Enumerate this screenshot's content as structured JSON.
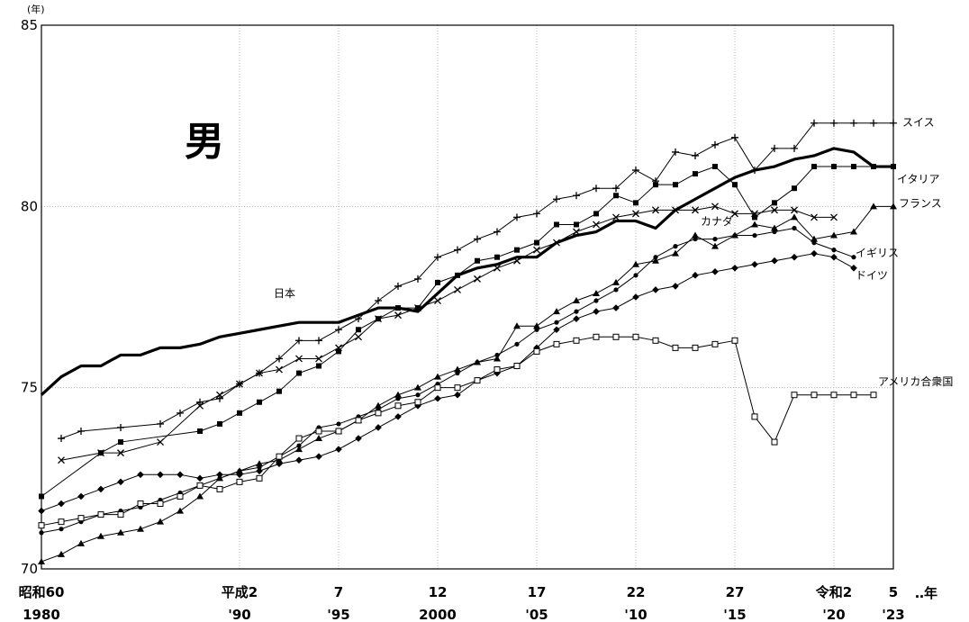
{
  "chart_data": {
    "type": "line",
    "title": "男",
    "y_unit": "(年)",
    "x_suffix": "‥年",
    "ylim": [
      70,
      85
    ],
    "y_ticks": [
      70,
      75,
      80,
      85
    ],
    "xlim": [
      1980,
      2023
    ],
    "x_ticks": [
      {
        "x": 1980,
        "jp": "昭和60",
        "west": "1980"
      },
      {
        "x": 1990,
        "jp": "平成2",
        "west": "'90"
      },
      {
        "x": 1995,
        "jp": "7",
        "west": "'95"
      },
      {
        "x": 2000,
        "jp": "12",
        "west": "2000"
      },
      {
        "x": 2005,
        "jp": "17",
        "west": "'05"
      },
      {
        "x": 2010,
        "jp": "22",
        "west": "'10"
      },
      {
        "x": 2015,
        "jp": "27",
        "west": "'15"
      },
      {
        "x": 2020,
        "jp": "令和2",
        "west": "'20"
      },
      {
        "x": 2023,
        "jp": "5",
        "west": "'23"
      }
    ],
    "grid": true,
    "series": [
      {
        "name": "日本",
        "marker": "none",
        "x": [
          1980,
          1981,
          1982,
          1983,
          1984,
          1985,
          1986,
          1987,
          1988,
          1989,
          1990,
          1991,
          1992,
          1993,
          1994,
          1995,
          1996,
          1997,
          1998,
          1999,
          2000,
          2001,
          2002,
          2003,
          2004,
          2005,
          2006,
          2007,
          2008,
          2009,
          2010,
          2011,
          2012,
          2013,
          2014,
          2015,
          2016,
          2017,
          2018,
          2019,
          2020,
          2021,
          2022,
          2023
        ],
        "y": [
          74.8,
          75.3,
          75.6,
          75.6,
          75.9,
          75.9,
          76.1,
          76.1,
          76.2,
          76.4,
          76.5,
          76.6,
          76.7,
          76.8,
          76.8,
          76.8,
          77.0,
          77.2,
          77.2,
          77.1,
          77.6,
          78.1,
          78.3,
          78.4,
          78.6,
          78.6,
          79.0,
          79.2,
          79.3,
          79.6,
          79.6,
          79.4,
          79.9,
          80.2,
          80.5,
          80.8,
          81.0,
          81.1,
          81.3,
          81.4,
          81.6,
          81.5,
          81.1,
          81.1
        ]
      },
      {
        "name": "スイス",
        "marker": "plus",
        "x": [
          1981,
          1982,
          1984,
          1986,
          1987,
          1988,
          1989,
          1990,
          1991,
          1992,
          1993,
          1994,
          1995,
          1996,
          1997,
          1998,
          1999,
          2000,
          2001,
          2002,
          2003,
          2004,
          2005,
          2006,
          2007,
          2008,
          2009,
          2010,
          2011,
          2012,
          2013,
          2014,
          2015,
          2016,
          2017,
          2018,
          2019,
          2020,
          2021,
          2022,
          2023
        ],
        "y": [
          73.6,
          73.8,
          73.9,
          74.0,
          74.3,
          74.6,
          74.7,
          75.1,
          75.4,
          75.8,
          76.3,
          76.3,
          76.6,
          76.9,
          77.4,
          77.8,
          78.0,
          78.6,
          78.8,
          79.1,
          79.3,
          79.7,
          79.8,
          80.2,
          80.3,
          80.5,
          80.5,
          81.0,
          80.7,
          81.5,
          81.4,
          81.7,
          81.9,
          81.0,
          81.6,
          81.6,
          82.3,
          82.3,
          82.3,
          82.3,
          82.3
        ]
      },
      {
        "name": "イタリア",
        "marker": "square",
        "x": [
          1980,
          1983,
          1984,
          1988,
          1989,
          1990,
          1991,
          1992,
          1993,
          1994,
          1995,
          1996,
          1997,
          1998,
          1999,
          2000,
          2001,
          2002,
          2003,
          2004,
          2005,
          2006,
          2007,
          2008,
          2009,
          2010,
          2011,
          2012,
          2013,
          2014,
          2015,
          2016,
          2017,
          2018,
          2019,
          2020,
          2021,
          2022,
          2023
        ],
        "y": [
          72.0,
          73.2,
          73.5,
          73.8,
          74.0,
          74.3,
          74.6,
          74.9,
          75.4,
          75.6,
          76.0,
          76.6,
          76.9,
          77.2,
          77.2,
          77.9,
          78.1,
          78.5,
          78.6,
          78.8,
          79.0,
          79.5,
          79.5,
          79.8,
          80.3,
          80.1,
          80.6,
          80.6,
          80.9,
          81.1,
          80.6,
          79.7,
          80.1,
          80.5,
          81.1,
          81.1,
          81.1,
          81.1,
          81.1
        ]
      },
      {
        "name": "フランス",
        "marker": "triangle",
        "x": [
          1980,
          1981,
          1982,
          1983,
          1984,
          1985,
          1986,
          1987,
          1988,
          1989,
          1990,
          1991,
          1992,
          1993,
          1994,
          1995,
          1996,
          1997,
          1998,
          1999,
          2000,
          2001,
          2002,
          2003,
          2004,
          2005,
          2006,
          2007,
          2008,
          2009,
          2010,
          2011,
          2012,
          2013,
          2014,
          2015,
          2016,
          2017,
          2018,
          2019,
          2020,
          2021,
          2022,
          2023
        ],
        "y": [
          70.2,
          70.4,
          70.7,
          70.9,
          71.0,
          71.1,
          71.3,
          71.6,
          72.0,
          72.5,
          72.7,
          72.9,
          73.0,
          73.3,
          73.6,
          73.8,
          74.1,
          74.5,
          74.8,
          75.0,
          75.3,
          75.5,
          75.7,
          75.8,
          76.7,
          76.7,
          77.1,
          77.4,
          77.6,
          77.9,
          78.4,
          78.5,
          78.7,
          79.2,
          78.9,
          79.2,
          79.5,
          79.4,
          79.7,
          79.1,
          79.2,
          79.3,
          80.0,
          80.0
        ]
      },
      {
        "name": "カナダ",
        "marker": "x",
        "x": [
          1981,
          1983,
          1984,
          1986,
          1988,
          1989,
          1990,
          1991,
          1992,
          1993,
          1994,
          1995,
          1996,
          1997,
          1998,
          1999,
          2000,
          2001,
          2002,
          2003,
          2004,
          2005,
          2006,
          2007,
          2008,
          2009,
          2010,
          2011,
          2012,
          2013,
          2014,
          2015,
          2016,
          2017,
          2018,
          2019,
          2020
        ],
        "y": [
          73.0,
          73.2,
          73.2,
          73.5,
          74.5,
          74.8,
          75.1,
          75.4,
          75.5,
          75.8,
          75.8,
          76.1,
          76.4,
          76.9,
          77.0,
          77.2,
          77.4,
          77.7,
          78.0,
          78.3,
          78.5,
          78.8,
          79.0,
          79.3,
          79.5,
          79.7,
          79.8,
          79.9,
          79.9,
          79.9,
          80.0,
          79.8,
          79.8,
          79.9,
          79.9,
          79.7,
          79.7
        ]
      },
      {
        "name": "イギリス",
        "marker": "dot",
        "x": [
          1980,
          1981,
          1982,
          1983,
          1984,
          1985,
          1986,
          1987,
          1988,
          1989,
          1990,
          1991,
          1992,
          1993,
          1994,
          1995,
          1996,
          1997,
          1998,
          1999,
          2000,
          2001,
          2002,
          2003,
          2004,
          2005,
          2006,
          2007,
          2008,
          2009,
          2010,
          2011,
          2012,
          2013,
          2014,
          2015,
          2016,
          2017,
          2018,
          2019,
          2020,
          2021
        ],
        "y": [
          71.0,
          71.1,
          71.3,
          71.5,
          71.6,
          71.7,
          71.9,
          72.1,
          72.3,
          72.5,
          72.7,
          72.8,
          73.1,
          73.4,
          73.9,
          74.0,
          74.2,
          74.4,
          74.7,
          74.8,
          75.1,
          75.4,
          75.7,
          75.9,
          76.2,
          76.6,
          76.8,
          77.1,
          77.4,
          77.7,
          78.1,
          78.6,
          78.9,
          79.1,
          79.1,
          79.2,
          79.2,
          79.3,
          79.4,
          79.0,
          78.8,
          78.6
        ]
      },
      {
        "name": "ドイツ",
        "marker": "diamond",
        "x": [
          1980,
          1981,
          1982,
          1983,
          1984,
          1985,
          1986,
          1987,
          1988,
          1989,
          1990,
          1991,
          1992,
          1993,
          1994,
          1995,
          1996,
          1997,
          1998,
          1999,
          2000,
          2001,
          2002,
          2003,
          2004,
          2005,
          2006,
          2007,
          2008,
          2009,
          2010,
          2011,
          2012,
          2013,
          2014,
          2015,
          2016,
          2017,
          2018,
          2019,
          2020,
          2021
        ],
        "y": [
          71.6,
          71.8,
          72.0,
          72.2,
          72.4,
          72.6,
          72.6,
          72.6,
          72.5,
          72.6,
          72.6,
          72.7,
          72.9,
          73.0,
          73.1,
          73.3,
          73.6,
          73.9,
          74.2,
          74.5,
          74.7,
          74.8,
          75.2,
          75.4,
          75.6,
          76.1,
          76.6,
          76.9,
          77.1,
          77.2,
          77.5,
          77.7,
          77.8,
          78.1,
          78.2,
          78.3,
          78.4,
          78.5,
          78.6,
          78.7,
          78.6,
          78.3
        ]
      },
      {
        "name": "アメリカ合衆国",
        "marker": "open-square",
        "x": [
          1980,
          1981,
          1982,
          1983,
          1984,
          1985,
          1986,
          1987,
          1988,
          1989,
          1990,
          1991,
          1992,
          1993,
          1994,
          1995,
          1996,
          1997,
          1998,
          1999,
          2000,
          2001,
          2002,
          2003,
          2004,
          2005,
          2006,
          2007,
          2008,
          2009,
          2010,
          2011,
          2012,
          2013,
          2014,
          2015,
          2016,
          2017,
          2018,
          2019,
          2020,
          2021,
          2022
        ],
        "y": [
          71.2,
          71.3,
          71.4,
          71.5,
          71.5,
          71.8,
          71.8,
          72.0,
          72.3,
          72.2,
          72.4,
          72.5,
          73.1,
          73.6,
          73.8,
          73.8,
          74.1,
          74.3,
          74.5,
          74.6,
          75.0,
          75.0,
          75.2,
          75.5,
          75.6,
          76.0,
          76.2,
          76.3,
          76.4,
          76.4,
          76.4,
          76.3,
          76.1,
          76.1,
          76.2,
          76.3,
          74.2,
          73.5,
          74.8,
          74.8,
          74.8,
          74.8,
          74.8
        ]
      }
    ]
  }
}
